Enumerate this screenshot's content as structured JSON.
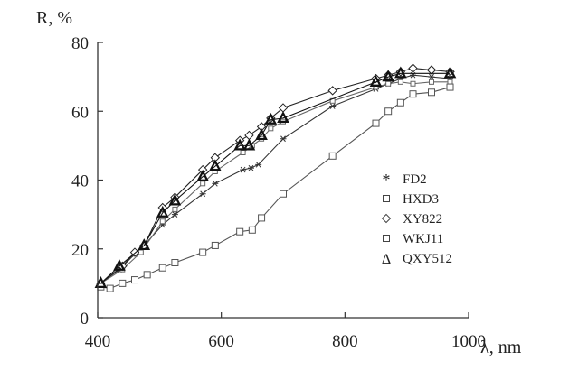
{
  "chart_data": {
    "type": "line",
    "xlabel": "λ, nm",
    "ylabel": "R, %",
    "xlim": [
      400,
      1000
    ],
    "ylim": [
      0,
      80
    ],
    "xticks": [
      400,
      600,
      800,
      1000
    ],
    "yticks": [
      0,
      20,
      40,
      60,
      80
    ],
    "legend_position": "right",
    "grid": false,
    "series": [
      {
        "name": "FD2",
        "marker": "asterisk",
        "color": "#333333",
        "x": [
          405,
          435,
          460,
          475,
          505,
          525,
          570,
          590,
          635,
          648,
          660,
          700,
          780,
          850,
          870,
          890,
          910,
          940,
          970
        ],
        "y": [
          10,
          14,
          18.5,
          21,
          27,
          30,
          36,
          39,
          43,
          43.5,
          44.5,
          52,
          61.5,
          66.5,
          68,
          69.5,
          70.5,
          70,
          69.5
        ]
      },
      {
        "name": "HXD3",
        "marker": "square-small",
        "color": "#666666",
        "x": [
          405,
          440,
          470,
          505,
          525,
          570,
          590,
          635,
          650,
          665,
          680,
          700,
          780,
          850,
          870,
          890,
          910,
          940,
          970
        ],
        "y": [
          10,
          14,
          19,
          28,
          31.5,
          39,
          42.5,
          48,
          50,
          52,
          55,
          57,
          63,
          67,
          68,
          68.5,
          68,
          68.5,
          68.5
        ]
      },
      {
        "name": "XY822",
        "marker": "diamond",
        "color": "#222222",
        "x": [
          405,
          440,
          460,
          475,
          505,
          525,
          570,
          590,
          630,
          645,
          665,
          680,
          700,
          780,
          850,
          870,
          890,
          910,
          940,
          970
        ],
        "y": [
          10,
          15,
          19,
          21,
          32,
          35,
          43,
          46.5,
          51.5,
          53,
          55.5,
          58,
          61,
          66,
          69.5,
          70.5,
          71.5,
          72.5,
          72,
          71.5
        ]
      },
      {
        "name": "WKJ11",
        "marker": "square",
        "color": "#555555",
        "x": [
          405,
          420,
          440,
          460,
          480,
          505,
          525,
          570,
          590,
          630,
          650,
          665,
          700,
          780,
          850,
          870,
          890,
          910,
          940,
          970
        ],
        "y": [
          9,
          8.5,
          10,
          11,
          12.5,
          14.5,
          16,
          19,
          21,
          25,
          25.5,
          29,
          36,
          47,
          56.5,
          60,
          62.5,
          65,
          65.5,
          67
        ]
      },
      {
        "name": "QXY512",
        "marker": "triangle",
        "color": "#111111",
        "x": [
          405,
          435,
          475,
          505,
          525,
          570,
          590,
          630,
          645,
          665,
          680,
          700,
          850,
          870,
          890,
          970
        ],
        "y": [
          10,
          15,
          21,
          30.5,
          34,
          41,
          44,
          50,
          50,
          53,
          57.5,
          58,
          68.5,
          70,
          71,
          71
        ]
      }
    ]
  }
}
